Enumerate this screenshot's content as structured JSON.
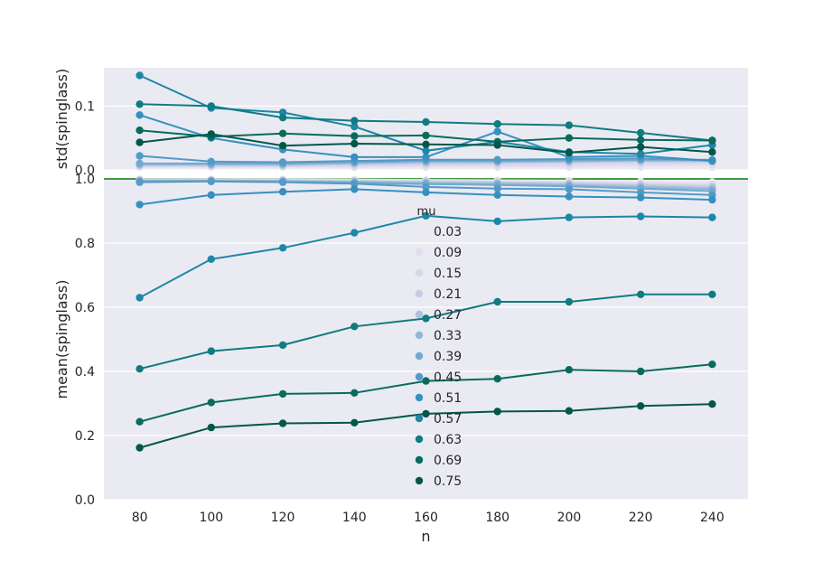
{
  "chart_data": [
    {
      "type": "line",
      "panel": "top",
      "ylabel": "std(spinglass)",
      "xlabel": "",
      "ylim": [
        0,
        0.16
      ],
      "yticks": [
        "0.0",
        "0.1"
      ],
      "ytick_values": [
        0.0,
        0.1
      ],
      "x": [
        80,
        100,
        120,
        140,
        160,
        180,
        200,
        220,
        240
      ],
      "grid": true,
      "series": [
        {
          "name": "0.03",
          "color": "#ece7f2",
          "values": [
            0.004,
            0.004,
            0.004,
            0.004,
            0.004,
            0.004,
            0.004,
            0.004,
            0.004
          ]
        },
        {
          "name": "0.09",
          "color": "#e3dcec",
          "values": [
            0.005,
            0.005,
            0.005,
            0.005,
            0.006,
            0.006,
            0.006,
            0.007,
            0.008
          ]
        },
        {
          "name": "0.15",
          "color": "#d6d6e9",
          "values": [
            0.006,
            0.006,
            0.006,
            0.007,
            0.008,
            0.008,
            0.009,
            0.01,
            0.011
          ]
        },
        {
          "name": "0.21",
          "color": "#c4cce3",
          "values": [
            0.007,
            0.007,
            0.007,
            0.009,
            0.01,
            0.011,
            0.012,
            0.013,
            0.013
          ]
        },
        {
          "name": "0.27",
          "color": "#aec2dd",
          "values": [
            0.008,
            0.008,
            0.008,
            0.01,
            0.012,
            0.012,
            0.013,
            0.014,
            0.014
          ]
        },
        {
          "name": "0.33",
          "color": "#93b6d7",
          "values": [
            0.009,
            0.009,
            0.009,
            0.011,
            0.013,
            0.013,
            0.014,
            0.015,
            0.015
          ]
        },
        {
          "name": "0.39",
          "color": "#74a9cf",
          "values": [
            0.01,
            0.01,
            0.01,
            0.012,
            0.014,
            0.014,
            0.015,
            0.016,
            0.016
          ]
        },
        {
          "name": "0.45",
          "color": "#549ac6",
          "values": [
            0.022,
            0.013,
            0.012,
            0.014,
            0.016,
            0.016,
            0.017,
            0.018,
            0.015
          ]
        },
        {
          "name": "0.51",
          "color": "#3690c0",
          "values": [
            0.086,
            0.05,
            0.032,
            0.02,
            0.02,
            0.06,
            0.02,
            0.022,
            0.014
          ]
        },
        {
          "name": "0.57",
          "color": "#1c87a6",
          "values": [
            0.148,
            0.097,
            0.09,
            0.068,
            0.03,
            0.044,
            0.028,
            0.025,
            0.039
          ]
        },
        {
          "name": "0.63",
          "color": "#0f7b82",
          "values": [
            0.103,
            0.1,
            0.082,
            0.077,
            0.075,
            0.072,
            0.07,
            0.058,
            0.046
          ]
        },
        {
          "name": "0.69",
          "color": "#086b5d",
          "values": [
            0.062,
            0.052,
            0.057,
            0.053,
            0.054,
            0.044,
            0.05,
            0.047,
            0.046
          ]
        },
        {
          "name": "0.75",
          "color": "#02574a",
          "values": [
            0.043,
            0.056,
            0.038,
            0.041,
            0.04,
            0.039,
            0.027,
            0.036,
            0.028
          ]
        }
      ]
    },
    {
      "type": "line",
      "panel": "bottom",
      "ylabel": "mean(spinglass)",
      "xlabel": "n",
      "ylim": [
        0.0,
        1.0
      ],
      "yticks": [
        "0.0",
        "0.2",
        "0.4",
        "0.6",
        "0.8",
        "1.0"
      ],
      "ytick_values": [
        0.0,
        0.2,
        0.4,
        0.6,
        0.8,
        1.0
      ],
      "x": [
        80,
        100,
        120,
        140,
        160,
        180,
        200,
        220,
        240
      ],
      "xticks": [
        "80",
        "100",
        "120",
        "140",
        "160",
        "180",
        "200",
        "220",
        "240"
      ],
      "hline": {
        "y": 1.0,
        "color": "#008000"
      },
      "grid": true,
      "legend": {
        "title": "mu",
        "placement": "center"
      },
      "series": [
        {
          "name": "0.03",
          "color": "#ece7f2",
          "values": [
            0.999,
            0.999,
            0.999,
            0.998,
            0.997,
            0.996,
            0.995,
            0.992,
            0.99
          ]
        },
        {
          "name": "0.09",
          "color": "#e3dcec",
          "values": [
            0.998,
            0.998,
            0.997,
            0.996,
            0.995,
            0.993,
            0.991,
            0.988,
            0.985
          ]
        },
        {
          "name": "0.15",
          "color": "#d6d6e9",
          "values": [
            0.997,
            0.997,
            0.996,
            0.995,
            0.993,
            0.991,
            0.988,
            0.984,
            0.98
          ]
        },
        {
          "name": "0.21",
          "color": "#c4cce3",
          "values": [
            0.996,
            0.996,
            0.995,
            0.993,
            0.991,
            0.989,
            0.986,
            0.981,
            0.976
          ]
        },
        {
          "name": "0.27",
          "color": "#aec2dd",
          "values": [
            0.995,
            0.995,
            0.994,
            0.992,
            0.989,
            0.987,
            0.983,
            0.978,
            0.972
          ]
        },
        {
          "name": "0.33",
          "color": "#93b6d7",
          "values": [
            0.994,
            0.994,
            0.993,
            0.99,
            0.987,
            0.984,
            0.98,
            0.974,
            0.968
          ]
        },
        {
          "name": "0.39",
          "color": "#74a9cf",
          "values": [
            0.992,
            0.993,
            0.991,
            0.988,
            0.984,
            0.981,
            0.977,
            0.97,
            0.962
          ]
        },
        {
          "name": "0.45",
          "color": "#549ac6",
          "values": [
            0.99,
            0.992,
            0.99,
            0.985,
            0.975,
            0.97,
            0.968,
            0.958,
            0.95
          ]
        },
        {
          "name": "0.51",
          "color": "#3690c0",
          "values": [
            0.92,
            0.95,
            0.96,
            0.968,
            0.958,
            0.95,
            0.945,
            0.942,
            0.935
          ]
        },
        {
          "name": "0.57",
          "color": "#1c87a6",
          "values": [
            0.63,
            0.75,
            0.785,
            0.832,
            0.885,
            0.868,
            0.88,
            0.883,
            0.88
          ]
        },
        {
          "name": "0.63",
          "color": "#0f7b82",
          "values": [
            0.408,
            0.463,
            0.482,
            0.54,
            0.565,
            0.617,
            0.617,
            0.64,
            0.64
          ]
        },
        {
          "name": "0.69",
          "color": "#086b5d",
          "values": [
            0.243,
            0.303,
            0.33,
            0.333,
            0.37,
            0.377,
            0.405,
            0.4,
            0.422
          ]
        },
        {
          "name": "0.75",
          "color": "#02574a",
          "values": [
            0.162,
            0.225,
            0.238,
            0.24,
            0.268,
            0.275,
            0.277,
            0.292,
            0.298
          ]
        }
      ]
    }
  ]
}
